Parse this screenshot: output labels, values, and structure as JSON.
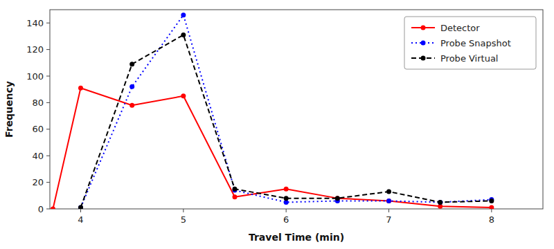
{
  "chart_data": {
    "type": "line",
    "xlabel": "Travel Time (min)",
    "ylabel": "Frequency",
    "xlim": [
      3.7,
      8.5
    ],
    "ylim": [
      0,
      150
    ],
    "xticks": [
      4,
      5,
      6,
      7,
      8
    ],
    "yticks": [
      0,
      20,
      40,
      60,
      80,
      100,
      120,
      140
    ],
    "legend": "upper right",
    "series": [
      {
        "name": "Detector",
        "color": "red",
        "line_style": "solid",
        "marker": "circle",
        "x": [
          3.73,
          4,
          4.5,
          5,
          5.5,
          6,
          6.5,
          7,
          7.5,
          8
        ],
        "values": [
          0,
          91,
          78,
          85,
          9,
          15,
          8,
          6,
          2,
          1
        ]
      },
      {
        "name": "Probe Snapshot",
        "color": "blue",
        "line_style": "dotted",
        "marker": "circle",
        "x": [
          4,
          4.5,
          5,
          5.5,
          6,
          6.5,
          7,
          7.5,
          8
        ],
        "values": [
          1,
          92,
          146,
          14,
          5,
          6,
          6,
          5,
          7
        ]
      },
      {
        "name": "Probe Virtual",
        "color": "black",
        "line_style": "dashed",
        "marker": "circle",
        "x": [
          4,
          4.5,
          5,
          5.5,
          6,
          6.5,
          7,
          7.5,
          8
        ],
        "values": [
          1,
          109,
          131,
          15,
          8,
          8,
          13,
          5,
          6
        ]
      }
    ]
  }
}
